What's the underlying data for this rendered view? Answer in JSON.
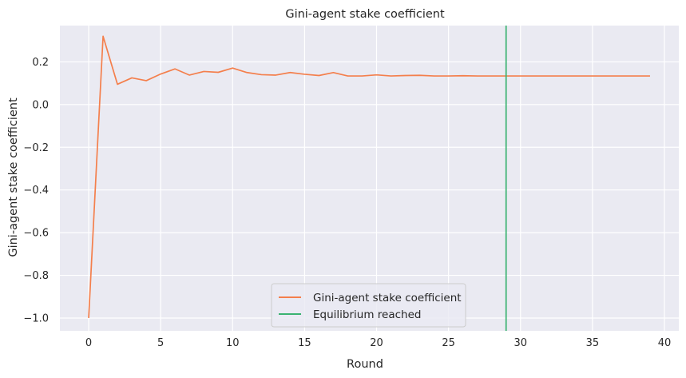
{
  "chart_data": {
    "type": "line",
    "title": "Gini-agent stake coefficient",
    "xlabel": "Round",
    "ylabel": "Gini-agent stake coefficient",
    "xlim": [
      -2,
      41
    ],
    "ylim": [
      -1.06,
      0.37
    ],
    "xticks": [
      0,
      5,
      10,
      15,
      20,
      25,
      30,
      35,
      40
    ],
    "yticks": [
      -1.0,
      -0.8,
      -0.6,
      -0.4,
      -0.2,
      0.0,
      0.2
    ],
    "ytick_labels": [
      "−1.0",
      "−0.8",
      "−0.6",
      "−0.4",
      "−0.2",
      "0.0",
      "0.2"
    ],
    "grid": true,
    "background": "#eaeaf2",
    "legend_position": "lower-center",
    "series": [
      {
        "name": "Gini-agent stake coefficient",
        "color": "#f47f4c",
        "x": [
          0,
          1,
          2,
          3,
          4,
          5,
          6,
          7,
          8,
          9,
          10,
          11,
          12,
          13,
          14,
          15,
          16,
          17,
          18,
          19,
          20,
          21,
          22,
          23,
          24,
          25,
          26,
          27,
          28,
          29,
          30,
          31,
          32,
          33,
          34,
          35,
          36,
          37,
          38,
          39
        ],
        "y": [
          -1.0,
          0.32,
          0.095,
          0.125,
          0.112,
          0.143,
          0.167,
          0.138,
          0.155,
          0.151,
          0.171,
          0.15,
          0.14,
          0.138,
          0.15,
          0.142,
          0.136,
          0.15,
          0.134,
          0.134,
          0.139,
          0.134,
          0.136,
          0.137,
          0.134,
          0.134,
          0.135,
          0.134,
          0.134,
          0.134,
          0.134,
          0.134,
          0.134,
          0.134,
          0.134,
          0.134,
          0.134,
          0.134,
          0.134,
          0.134
        ]
      }
    ],
    "vlines": [
      {
        "name": "Equilibrium reached",
        "x": 29,
        "color": "#3bb371"
      }
    ]
  }
}
